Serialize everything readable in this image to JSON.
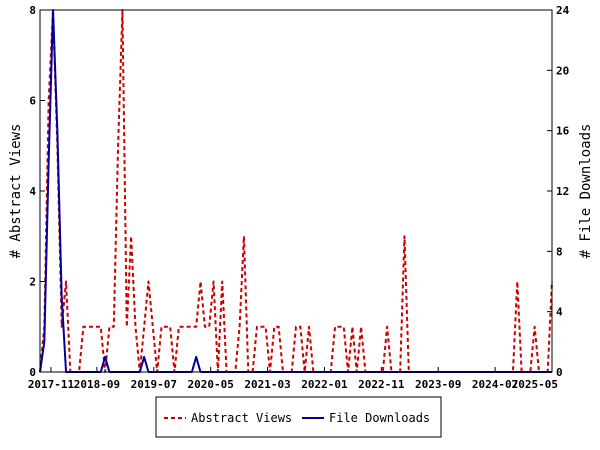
{
  "chart_data": {
    "type": "line",
    "title": "",
    "xlabel": "",
    "ylabel": "# Abstract Views",
    "y2label": "# File Downloads",
    "ylim": [
      0,
      8
    ],
    "y2lim": [
      0,
      24
    ],
    "yticks": [
      0,
      2,
      4,
      6,
      8
    ],
    "y2ticks": [
      0,
      4,
      8,
      12,
      16,
      20,
      24
    ],
    "xtick_labels": [
      "2017-11",
      "2018-09",
      "2019-07",
      "2020-05",
      "2021-03",
      "2022-01",
      "2022-11",
      "2023-09",
      "2024-07",
      "2025-05"
    ],
    "grid": false,
    "legend_position": "bottom-center",
    "colors": {
      "views": "#cc0000",
      "downloads": "#000099"
    },
    "series": [
      {
        "name": "Abstract Views",
        "axis": "left",
        "style": "dashed",
        "values": [
          0,
          1,
          6,
          8,
          5,
          1,
          2,
          0,
          0,
          0,
          1,
          1,
          1,
          1,
          1,
          0,
          1,
          1,
          5,
          8,
          1,
          3,
          1,
          0,
          1,
          2,
          1,
          0,
          1,
          1,
          1,
          0,
          1,
          1,
          1,
          1,
          1,
          2,
          1,
          1,
          2,
          0,
          2,
          0,
          0,
          0,
          1,
          3,
          0,
          0,
          1,
          1,
          1,
          0,
          1,
          1,
          0,
          0,
          0,
          1,
          1,
          0,
          1,
          0,
          0,
          0,
          0,
          0,
          1,
          1,
          1,
          0,
          1,
          0,
          1,
          0,
          0,
          0,
          0,
          0,
          1,
          0,
          0,
          0,
          3,
          0,
          0,
          0,
          0,
          0,
          0,
          0,
          0,
          0,
          0,
          0,
          0,
          0,
          0,
          0,
          0,
          0,
          0,
          0,
          0,
          0,
          0,
          0,
          0,
          0,
          2,
          0,
          0,
          0,
          1,
          0,
          0,
          0,
          2
        ]
      },
      {
        "name": "File Downloads",
        "axis": "right",
        "style": "solid",
        "values": [
          0,
          2,
          14,
          24,
          16,
          5,
          0,
          0,
          0,
          0,
          0,
          0,
          0,
          0,
          0,
          1,
          0,
          0,
          0,
          0,
          0,
          0,
          0,
          0,
          1,
          0,
          0,
          0,
          0,
          0,
          0,
          0,
          0,
          0,
          0,
          0,
          1,
          0,
          0,
          0,
          0,
          0,
          0,
          0,
          0,
          0,
          0,
          0,
          0,
          0,
          0,
          0,
          0,
          0,
          0,
          0,
          0,
          0,
          0,
          0,
          0,
          0,
          0,
          0,
          0,
          0,
          0,
          0,
          0,
          0,
          0,
          0,
          0,
          0,
          0,
          0,
          0,
          0,
          0,
          0,
          0,
          0,
          0,
          0,
          0,
          0,
          0,
          0,
          0,
          0,
          0,
          0,
          0,
          0,
          0,
          0,
          0,
          0,
          0,
          0,
          0,
          0,
          0,
          0,
          0,
          0,
          0,
          0,
          0,
          0,
          0,
          0,
          0,
          0,
          0,
          0,
          0,
          0,
          0
        ]
      }
    ]
  }
}
